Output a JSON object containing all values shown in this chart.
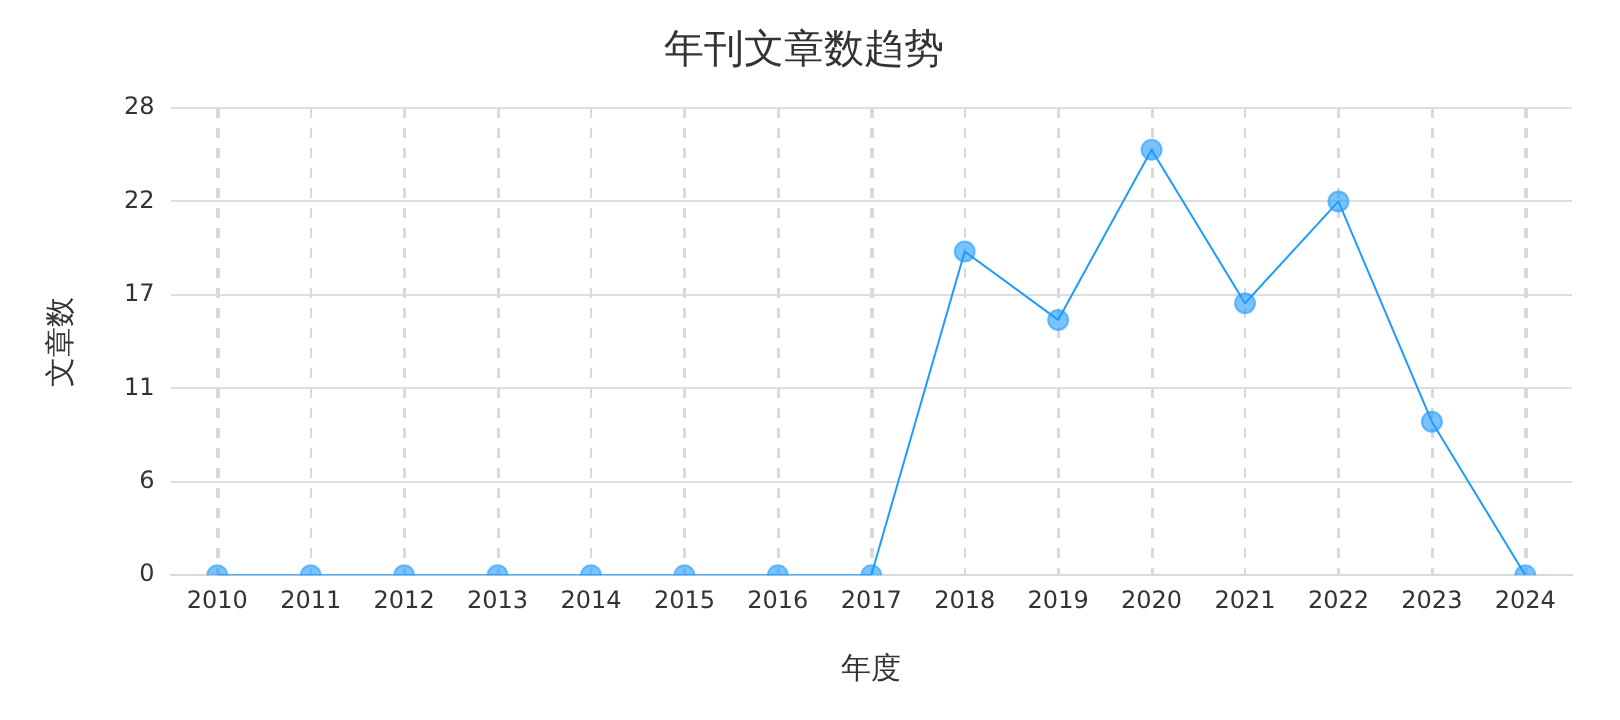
{
  "chart_data": {
    "type": "line",
    "title": "年刊文章数趋势",
    "xlabel": "年度",
    "ylabel": "文章数",
    "categories": [
      "2010",
      "2011",
      "2012",
      "2013",
      "2014",
      "2015",
      "2016",
      "2017",
      "2018",
      "2019",
      "2020",
      "2021",
      "2022",
      "2023",
      "2024"
    ],
    "series": [
      {
        "color": "#1e9bff",
        "values": [
          0,
          0,
          0,
          0,
          0,
          0,
          0,
          0,
          19.4,
          15.3,
          25.5,
          16.3,
          22.4,
          9.2,
          0
        ]
      }
    ],
    "ylim": [
      0,
      28
    ],
    "yticks": [
      0,
      {
        "value": 5.6,
        "label": "6"
      },
      {
        "value": 11.2,
        "label": "11"
      },
      {
        "value": 16.8,
        "label": "17"
      },
      {
        "value": 22.4,
        "label": "22"
      },
      28
    ],
    "grid": true,
    "marker": "circle",
    "line_style": "solid"
  }
}
